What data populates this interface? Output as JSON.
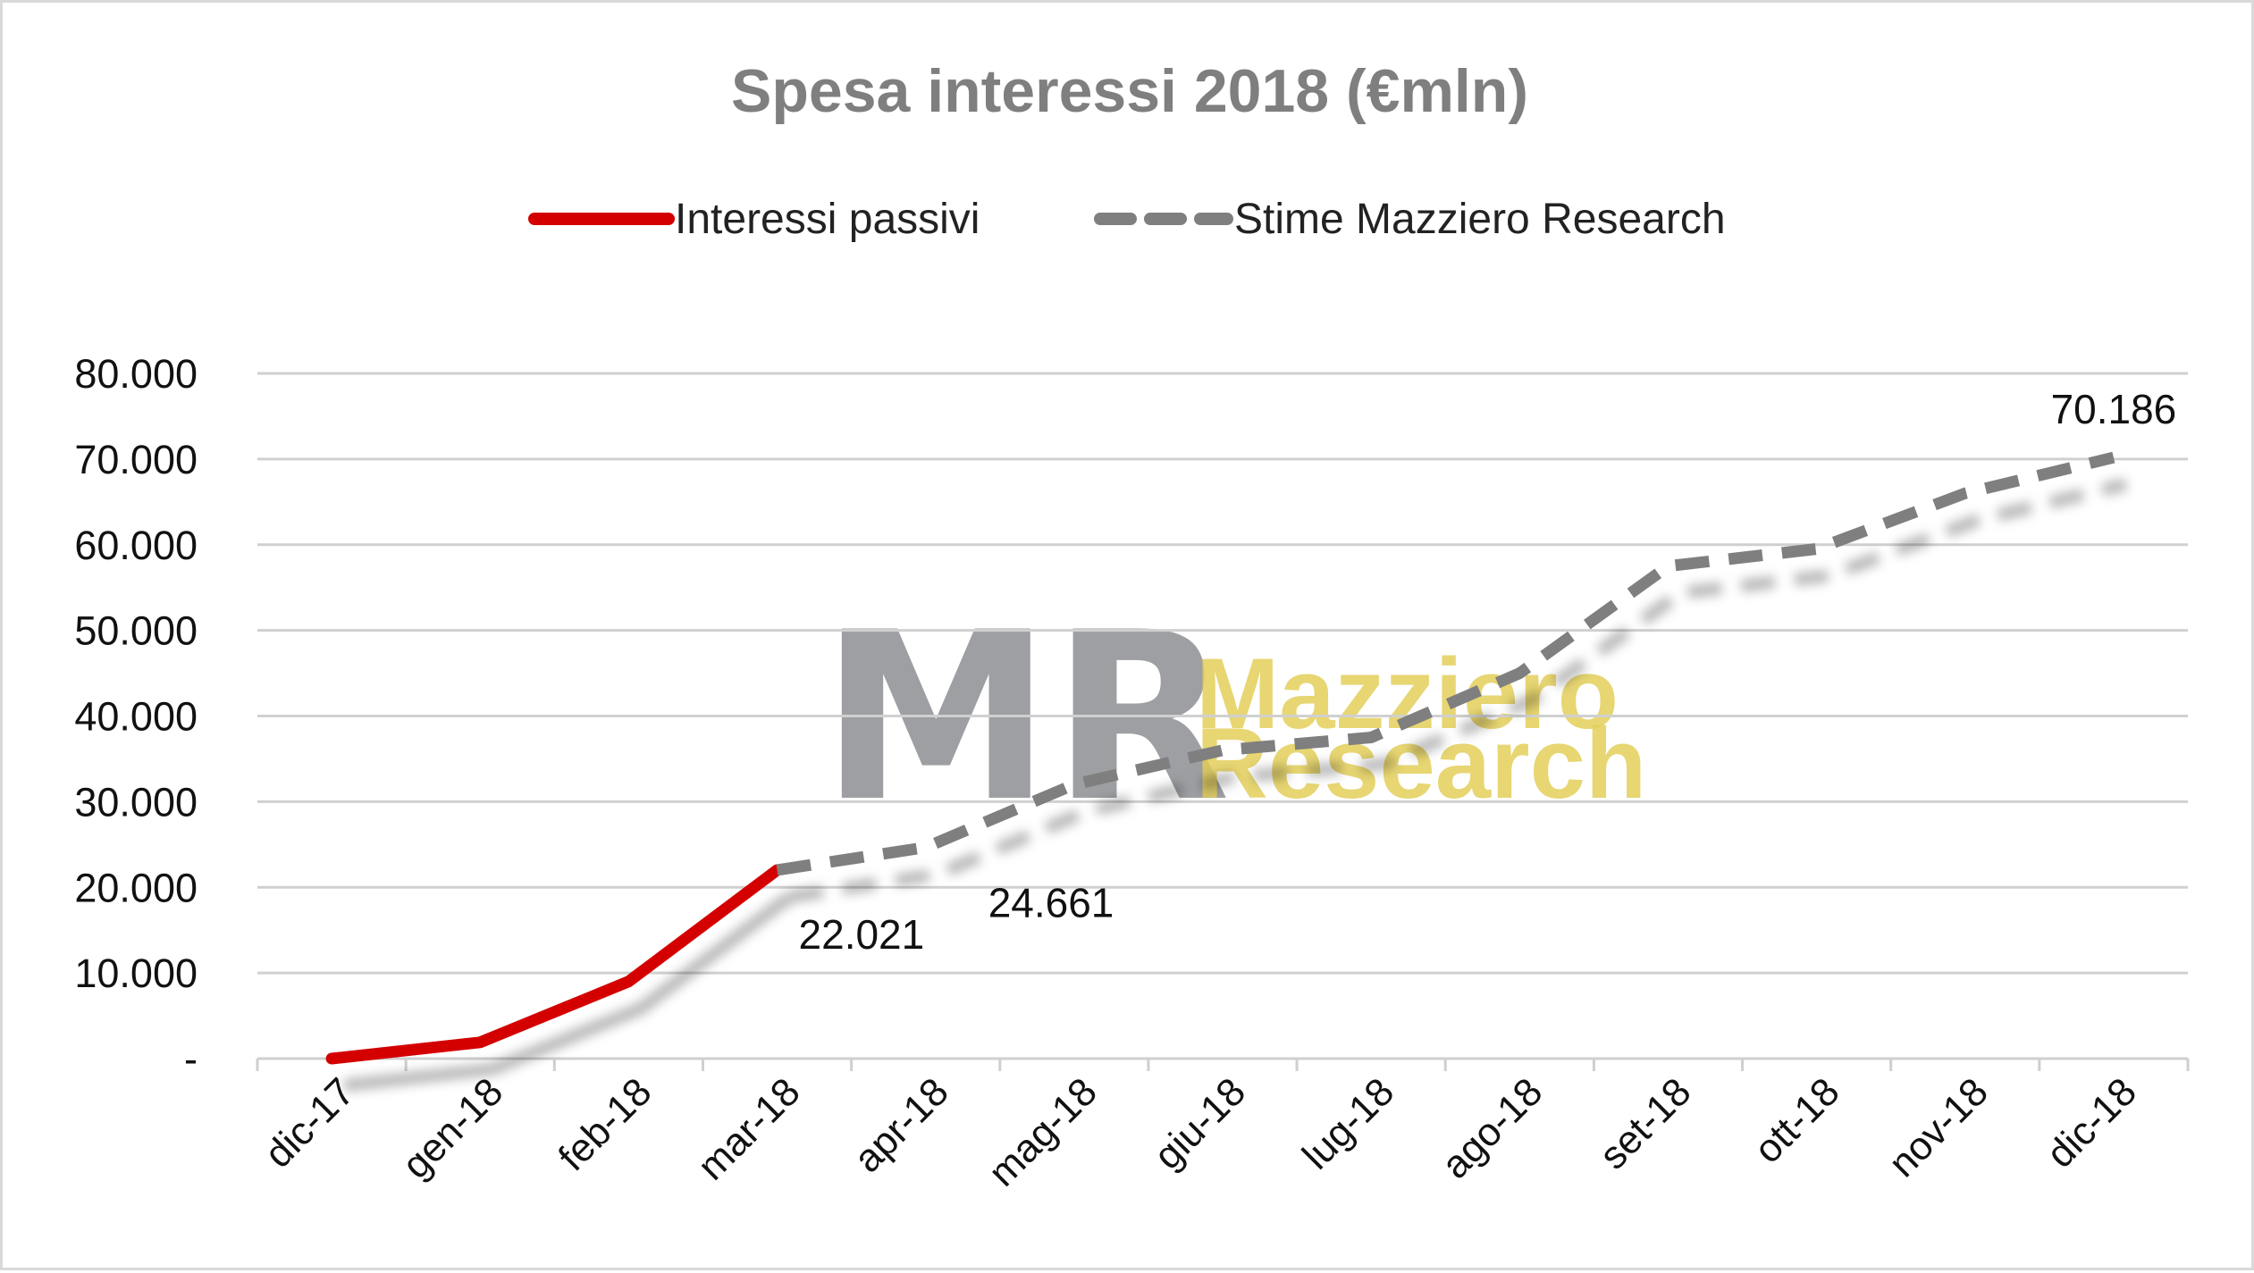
{
  "colors": {
    "actual": "#d40000",
    "estimate": "#7f7f7f",
    "grid": "#d0d0d0",
    "title": "#7f7f7f",
    "watermark_gray": "#8c8f94",
    "watermark_gold": "#e3cf5a"
  },
  "watermark": {
    "logo": "MR",
    "line1": "Mazziero",
    "line2": "Research"
  },
  "chart_data": {
    "type": "line",
    "title": "Spesa interessi 2018 (€mln)",
    "xlabel": "",
    "ylabel": "",
    "categories": [
      "dic-17",
      "gen-18",
      "feb-18",
      "mar-18",
      "apr-18",
      "mag-18",
      "giu-18",
      "lug-18",
      "ago-18",
      "set-18",
      "ott-18",
      "nov-18",
      "dic-18"
    ],
    "ylim": [
      0,
      80000
    ],
    "yticks": [
      0,
      10000,
      20000,
      30000,
      40000,
      50000,
      60000,
      70000,
      80000
    ],
    "ytick_labels": [
      "-",
      "10.000",
      "20.000",
      "30.000",
      "40.000",
      "50.000",
      "60.000",
      "70.000",
      "80.000"
    ],
    "grid": true,
    "legend_position": "top",
    "series": [
      {
        "name": "Interessi passivi",
        "style": "solid",
        "values": [
          0,
          1900,
          9000,
          22021,
          null,
          null,
          null,
          null,
          null,
          null,
          null,
          null,
          null
        ]
      },
      {
        "name": "Stime Mazziero Research",
        "style": "dashed",
        "values": [
          null,
          null,
          null,
          22021,
          24661,
          32000,
          36000,
          37500,
          45000,
          57500,
          59500,
          66000,
          70186
        ]
      }
    ],
    "data_labels": [
      {
        "category": "mar-18",
        "value": 22021,
        "text": "22.021"
      },
      {
        "category": "apr-18",
        "value": 24661,
        "text": "24.661"
      },
      {
        "category": "dic-18",
        "value": 70186,
        "text": "70.186"
      }
    ]
  }
}
